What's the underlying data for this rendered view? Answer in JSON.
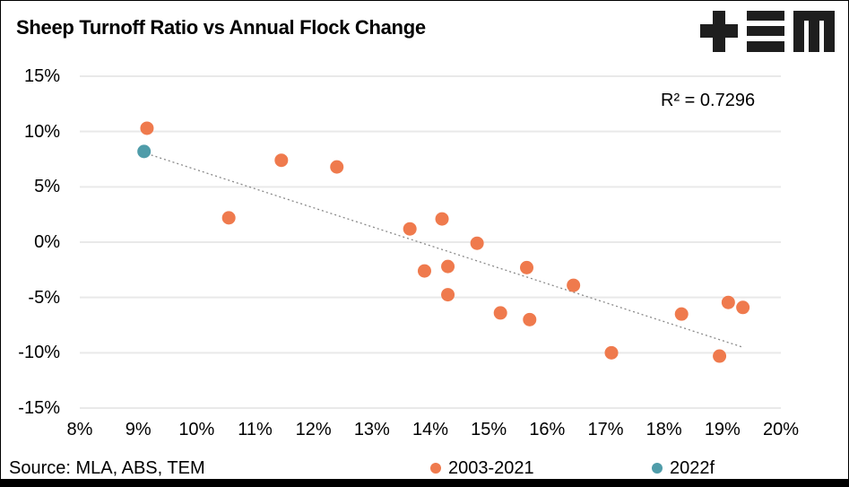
{
  "title": "Sheep Turnoff Ratio vs Annual Flock Change",
  "annotation": "R² = 0.7296",
  "source": "Source: MLA, ABS, TEM",
  "logo_name": "tem-logo",
  "legend": [
    {
      "label": "2003-2021",
      "color": "#EF7A4D"
    },
    {
      "label": "2022f",
      "color": "#4F9CA9"
    }
  ],
  "colors": {
    "orange": "#EF7A4D",
    "teal": "#4F9CA9",
    "gridline": "#E9E9E9",
    "trendline": "#8A8A8A",
    "text": "#000000",
    "logo": "#1E1E1E",
    "footer_bar": "#000000"
  },
  "chart_data": {
    "type": "scatter",
    "title": "Sheep Turnoff Ratio vs Annual Flock Change",
    "xlabel": "",
    "ylabel": "",
    "xlim": [
      8,
      20
    ],
    "ylim": [
      -15,
      15
    ],
    "x_ticks": [
      "8%",
      "9%",
      "10%",
      "11%",
      "12%",
      "13%",
      "14%",
      "15%",
      "16%",
      "17%",
      "18%",
      "19%",
      "20%"
    ],
    "y_ticks": [
      "15%",
      "10%",
      "5%",
      "0%",
      "-5%",
      "-10%",
      "-15%"
    ],
    "grid": "horizontal",
    "legend_position": "bottom",
    "r_squared": 0.7296,
    "series": [
      {
        "name": "2003-2021",
        "color": "#EF7A4D",
        "points": [
          [
            9.15,
            10.3
          ],
          [
            10.55,
            2.2
          ],
          [
            11.45,
            7.4
          ],
          [
            12.4,
            6.8
          ],
          [
            13.65,
            1.2
          ],
          [
            13.9,
            -2.6
          ],
          [
            14.2,
            2.1
          ],
          [
            14.3,
            -2.2
          ],
          [
            14.3,
            -4.75
          ],
          [
            14.8,
            -0.1
          ],
          [
            15.2,
            -6.4
          ],
          [
            15.65,
            -2.3
          ],
          [
            15.7,
            -7.0
          ],
          [
            16.45,
            -3.9
          ],
          [
            17.1,
            -10.0
          ],
          [
            18.3,
            -6.5
          ],
          [
            18.95,
            -10.3
          ],
          [
            19.1,
            -5.45
          ],
          [
            19.35,
            -5.9
          ]
        ]
      },
      {
        "name": "2022f",
        "color": "#4F9CA9",
        "points": [
          [
            9.1,
            8.2
          ]
        ]
      }
    ],
    "trendline": {
      "x1": 9.15,
      "y1": 8.0,
      "x2": 19.35,
      "y2": -9.5,
      "style": "dotted"
    }
  }
}
